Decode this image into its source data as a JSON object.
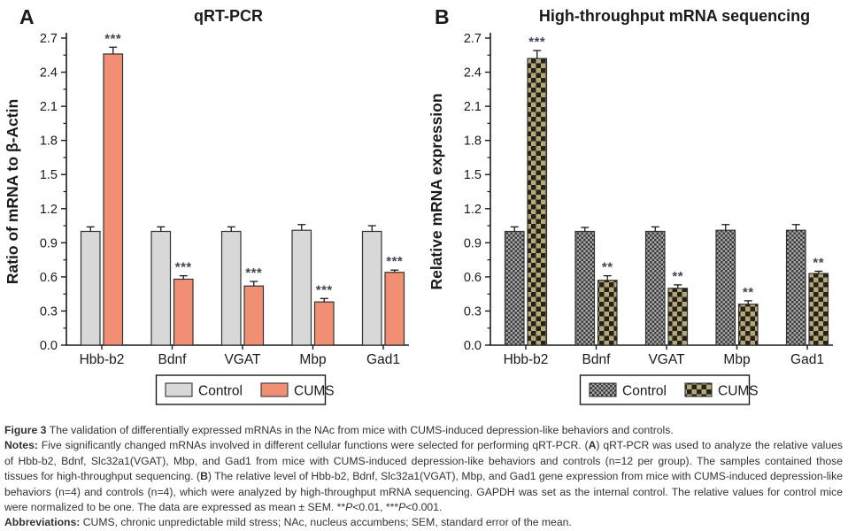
{
  "colors": {
    "text": "#1a1a1a",
    "axis": "#1a1a1a",
    "bar_border": "#333333",
    "significance": "#3f4654",
    "control_solid": "#d8d8d8",
    "cums_solid": "#f08f73",
    "checker_gray_light": "#a9a9a9",
    "checker_gray_dark": "#3a3a3a",
    "checker_tan": "#b3a878",
    "checker_dark": "#26211a"
  },
  "chart_data": [
    {
      "type": "bar",
      "panel_label": "A",
      "title": "qRT-PCR",
      "ylabel": "Ratio of mRNA to β-Actin",
      "ylim": [
        0,
        2.7
      ],
      "ytick_step": 0.3,
      "grid": false,
      "legend_position": "bottom",
      "categories": [
        "Hbb-b2",
        "Bdnf",
        "VGAT",
        "Mbp",
        "Gad1"
      ],
      "series": [
        {
          "name": "Control",
          "style": "solid",
          "fill": "control_solid",
          "values": [
            1.0,
            1.0,
            1.0,
            1.01,
            1.0
          ],
          "errors": [
            0.04,
            0.04,
            0.04,
            0.05,
            0.05
          ],
          "significance": [
            "",
            "",
            "",
            "",
            ""
          ]
        },
        {
          "name": "CUMS",
          "style": "solid",
          "fill": "cums_solid",
          "values": [
            2.56,
            0.58,
            0.52,
            0.38,
            0.64
          ],
          "errors": [
            0.06,
            0.03,
            0.04,
            0.03,
            0.02
          ],
          "significance": [
            "***",
            "***",
            "***",
            "***",
            "***"
          ]
        }
      ]
    },
    {
      "type": "bar",
      "panel_label": "B",
      "title": "High-throughput mRNA sequencing",
      "ylabel": "Relative mRNA expression",
      "ylim": [
        0,
        2.7
      ],
      "ytick_step": 0.3,
      "grid": false,
      "legend_position": "bottom",
      "categories": [
        "Hbb-b2",
        "Bdnf",
        "VGAT",
        "Mbp",
        "Gad1"
      ],
      "series": [
        {
          "name": "Control",
          "style": "checker-fine",
          "fill": "checker_gray_light",
          "fill2": "checker_gray_dark",
          "values": [
            1.0,
            1.0,
            1.0,
            1.01,
            1.01
          ],
          "errors": [
            0.04,
            0.035,
            0.04,
            0.05,
            0.05
          ],
          "significance": [
            "",
            "",
            "",
            "",
            ""
          ]
        },
        {
          "name": "CUMS",
          "style": "checker-coarse",
          "fill": "checker_tan",
          "fill2": "checker_dark",
          "values": [
            2.52,
            0.57,
            0.5,
            0.36,
            0.63
          ],
          "errors": [
            0.07,
            0.04,
            0.03,
            0.03,
            0.02
          ],
          "significance": [
            "***",
            "**",
            "**",
            "**",
            "**"
          ]
        }
      ]
    }
  ],
  "caption": {
    "figure": [
      {
        "t": "Figure 3 ",
        "b": true
      },
      {
        "t": "The validation of differentially expressed mRNAs in the NAc from mice with CUMS-induced depression-like behaviors and controls."
      }
    ],
    "notes": [
      {
        "t": "Notes: ",
        "b": true
      },
      {
        "t": "Five significantly changed mRNAs involved in different cellular functions were selected for performing qRT-PCR. ("
      },
      {
        "t": "A",
        "b": true
      },
      {
        "t": ") qRT-PCR was used to analyze the relative values of Hbb-b2, Bdnf, Slc32a1(VGAT), Mbp, and Gad1 from mice with CUMS-induced depression-like behaviors and controls (n=12 per group). The samples contained those tissues for high-throughput sequencing. ("
      },
      {
        "t": "B",
        "b": true
      },
      {
        "t": ") The relative level of Hbb-b2, Bdnf, Slc32a1(VGAT), Mbp, and Gad1 gene expression from mice with CUMS-induced depression-like behaviors (n=4) and controls (n=4), which were analyzed by high-throughput mRNA sequencing. GAPDH was set as the internal control. The relative values for control mice were normalized to be one. The data are expressed as mean ± SEM. **"
      },
      {
        "t": "P",
        "i": true
      },
      {
        "t": "<0.01, ***"
      },
      {
        "t": "P",
        "i": true
      },
      {
        "t": "<0.001."
      }
    ],
    "abbreviations": [
      {
        "t": "Abbreviations: ",
        "b": true
      },
      {
        "t": "CUMS, chronic unpredictable mild stress; NAc, nucleus accumbens; SEM, standard error of the mean."
      }
    ]
  }
}
